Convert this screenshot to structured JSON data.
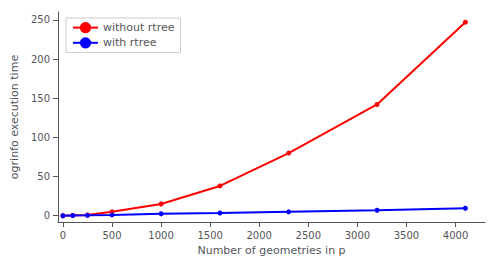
{
  "chart_data": {
    "type": "line",
    "xlabel": "Number of geometries in p",
    "ylabel": "ogrinfo execution time",
    "x": [
      0,
      100,
      250,
      500,
      1000,
      1600,
      2300,
      3200,
      4100
    ],
    "series": [
      {
        "name": "without rtree",
        "color": "#ff0000",
        "marker": "circle",
        "values": [
          0,
          0.5,
          1.0,
          5.0,
          15.0,
          38.0,
          80.0,
          142.0,
          247.0
        ]
      },
      {
        "name": "with rtree",
        "color": "#0000ff",
        "marker": "circle",
        "values": [
          0,
          0.3,
          0.5,
          1.0,
          2.5,
          3.5,
          5.0,
          7.0,
          9.5
        ]
      }
    ],
    "xlim": [
      -50,
      4300
    ],
    "ylim": [
      -8,
      260
    ],
    "xticks": [
      0,
      500,
      1000,
      1500,
      2000,
      2500,
      3000,
      3500,
      4000
    ],
    "yticks": [
      0,
      50,
      100,
      150,
      200,
      250
    ],
    "grid": false,
    "legend": "upper left"
  }
}
